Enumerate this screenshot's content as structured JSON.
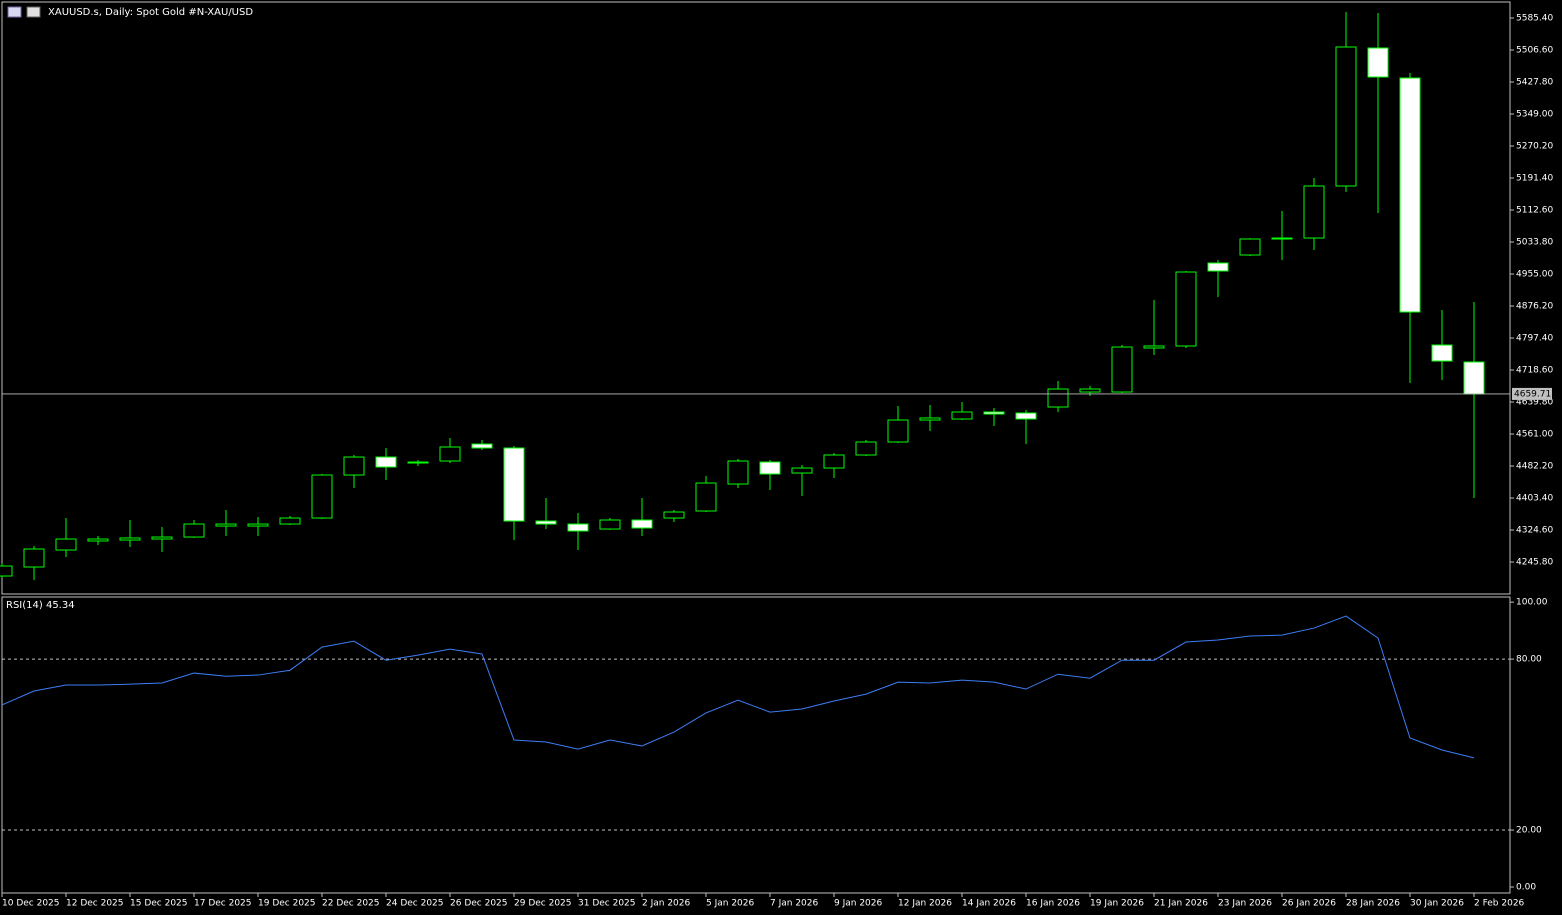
{
  "chart_data": [
    {
      "type": "candlestick",
      "title": "XAUUSD.s, Daily:  Spot Gold #N-XAU/USD",
      "categories": [
        "10 Dec 2025",
        null,
        "12 Dec 2025",
        null,
        "15 Dec 2025",
        null,
        "17 Dec 2025",
        null,
        "19 Dec 2025",
        null,
        "22 Dec 2025",
        null,
        "24 Dec 2025",
        null,
        "26 Dec 2025",
        null,
        "29 Dec 2025",
        null,
        "31 Dec 2025",
        null,
        "2 Jan 2026",
        null,
        "5 Jan 2026",
        null,
        "7 Jan 2026",
        null,
        "9 Jan 2026",
        null,
        "12 Jan 2026",
        null,
        "14 Jan 2026",
        null,
        "16 Jan 2026",
        null,
        "19 Jan 2026",
        null,
        "21 Jan 2026",
        null,
        "23 Jan 2026",
        null,
        "26 Jan 2026",
        null,
        "28 Jan 2026",
        null,
        "30 Jan 2026",
        null,
        "2 Feb 2026"
      ],
      "open": [
        4211.3,
        4233.5,
        4275.3,
        4297.5,
        4299.9,
        4302.4,
        4307.3,
        4334.4,
        4334.4,
        4339.3,
        4354.1,
        4460.0,
        4504.3,
        4489.6,
        4494.5,
        4536.3,
        4526.5,
        4346.7,
        4339.3,
        4327.0,
        4349.2,
        4354.1,
        4371.4,
        4437.8,
        4492.0,
        4464.9,
        4477.2,
        4509.3,
        4541.3,
        4595.4,
        4597.9,
        4615.2,
        4612.7,
        4627.5,
        4664.4,
        4664.4,
        4772.8,
        4777.7,
        4982.1,
        5001.8,
        5041.2,
        5043.6,
        5171.7,
        5511.5,
        5437.6,
        4780.1,
        4738.3
      ],
      "high": [
        4243.3,
        4285.2,
        4354.1,
        4309.8,
        4349.2,
        4332.0,
        4349.2,
        4373.8,
        4356.6,
        4359.0,
        4462.5,
        4509.3,
        4526.5,
        4496.9,
        4551.1,
        4546.2,
        4531.4,
        4403.4,
        4366.4,
        4354.1,
        4403.4,
        4373.8,
        4457.5,
        4499.4,
        4496.9,
        4484.6,
        4514.2,
        4546.2,
        4629.9,
        4632.4,
        4639.8,
        4625.0,
        4620.1,
        4691.5,
        4679.2,
        4780.1,
        4890.9,
        4962.4,
        4989.4,
        5043.6,
        5110.1,
        5191.4,
        5600.1,
        5597.7,
        5449.9,
        4866.3,
        4886.0
      ],
      "low": [
        4206.4,
        4201.4,
        4258.1,
        4287.6,
        4282.7,
        4270.4,
        4304.9,
        4309.8,
        4309.8,
        4336.9,
        4351.7,
        4428.0,
        4447.7,
        4482.2,
        4489.6,
        4521.6,
        4299.9,
        4327.0,
        4275.3,
        4324.6,
        4309.8,
        4344.3,
        4368.9,
        4428.0,
        4423.1,
        4408.3,
        4452.6,
        4506.8,
        4538.8,
        4568.4,
        4595.4,
        4580.7,
        4536.3,
        4615.2,
        4654.5,
        4661.9,
        4755.5,
        4772.8,
        4898.3,
        4999.3,
        4989.4,
        5014.1,
        5156.9,
        5105.2,
        4686.6,
        4693.9,
        4403.4
      ],
      "close": [
        4235.9,
        4277.8,
        4302.4,
        4302.4,
        4304.9,
        4307.3,
        4339.3,
        4339.3,
        4339.3,
        4354.1,
        4460.0,
        4504.3,
        4479.7,
        4492.0,
        4529.0,
        4526.5,
        4346.7,
        4339.3,
        4322.1,
        4349.2,
        4329.5,
        4368.9,
        4440.3,
        4494.5,
        4462.5,
        4477.2,
        4509.3,
        4541.3,
        4595.4,
        4600.4,
        4615.2,
        4610.2,
        4597.9,
        4671.8,
        4671.8,
        4775.2,
        4777.7,
        4959.9,
        4962.4,
        5041.2,
        5043.6,
        5171.7,
        5514.0,
        5440.1,
        4861.4,
        4740.7,
        4659.71
      ],
      "up_color": "#00ff00",
      "down_color": "#ffffff",
      "wick_color": "#00ff00",
      "ylim": [
        4167.0,
        5624.8
      ],
      "yticks": [
        {
          "value": 5585.4,
          "label": "5585.40"
        },
        {
          "value": 5506.6,
          "label": "5506.60"
        },
        {
          "value": 5427.8,
          "label": "5427.80"
        },
        {
          "value": 5349.0,
          "label": "5349.00"
        },
        {
          "value": 5270.2,
          "label": "5270.20"
        },
        {
          "value": 5191.4,
          "label": "5191.40"
        },
        {
          "value": 5112.6,
          "label": "5112.60"
        },
        {
          "value": 5033.8,
          "label": "5033.80"
        },
        {
          "value": 4955.0,
          "label": "4955.00"
        },
        {
          "value": 4876.2,
          "label": "4876.20"
        },
        {
          "value": 4797.4,
          "label": "4797.40"
        },
        {
          "value": 4718.6,
          "label": "4718.60"
        },
        {
          "value": 4639.8,
          "label": "4639.80"
        },
        {
          "value": 4561.0,
          "label": "4561.00"
        },
        {
          "value": 4482.2,
          "label": "4482.20"
        },
        {
          "value": 4403.4,
          "label": "4403.40"
        },
        {
          "value": 4324.6,
          "label": "4324.60"
        },
        {
          "value": 4245.8,
          "label": "4245.80"
        }
      ]
    },
    {
      "type": "line",
      "title": "RSI(14) 45.34",
      "color": "#3d7ef5",
      "values": [
        63.9,
        68.8,
        70.9,
        70.9,
        71.2,
        71.6,
        75.1,
        74.0,
        74.4,
        76.1,
        84.2,
        86.3,
        79.6,
        81.4,
        83.5,
        81.8,
        51.6,
        50.9,
        48.4,
        51.6,
        49.5,
        54.4,
        61.1,
        65.6,
        61.4,
        62.5,
        65.3,
        67.7,
        71.9,
        71.6,
        72.6,
        71.9,
        69.5,
        74.7,
        73.3,
        79.6,
        79.6,
        86.0,
        86.7,
        88.1,
        88.4,
        90.9,
        95.1,
        87.4,
        52.3,
        48.1,
        45.34
      ],
      "ylim": [
        -2.1,
        101.8
      ],
      "yticks": [
        {
          "value": 100,
          "label": "100.00"
        },
        {
          "value": 80,
          "label": "80.00"
        },
        {
          "value": 20,
          "label": "20.00"
        },
        {
          "value": 0,
          "label": "0.00"
        }
      ]
    }
  ]
}
